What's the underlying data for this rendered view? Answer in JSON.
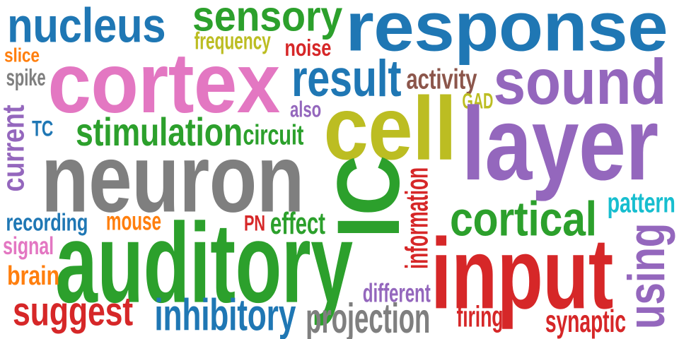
{
  "words": [
    {
      "text": "response",
      "color": "#1f77b4"
    },
    {
      "text": "nucleus",
      "color": "#1f77b4"
    },
    {
      "text": "sensory",
      "color": "#2ca02c"
    },
    {
      "text": "frequency",
      "color": "#bcbd22"
    },
    {
      "text": "noise",
      "color": "#d62728"
    },
    {
      "text": "slice",
      "color": "#ff7f0e"
    },
    {
      "text": "cortex",
      "color": "#e377c2"
    },
    {
      "text": "spike",
      "color": "#7f7f7f"
    },
    {
      "text": "result",
      "color": "#1f77b4"
    },
    {
      "text": "activity",
      "color": "#8c564b"
    },
    {
      "text": "sound",
      "color": "#9467bd"
    },
    {
      "text": "GAD",
      "color": "#bcbd22"
    },
    {
      "text": "also",
      "color": "#9467bd"
    },
    {
      "text": "cell",
      "color": "#bcbd22"
    },
    {
      "text": "current",
      "color": "#9467bd"
    },
    {
      "text": "TC",
      "color": "#1f77b4"
    },
    {
      "text": "stimulation",
      "color": "#2ca02c"
    },
    {
      "text": "circuit",
      "color": "#2ca02c"
    },
    {
      "text": "layer",
      "color": "#9467bd"
    },
    {
      "text": "neuron",
      "color": "#7f7f7f"
    },
    {
      "text": "IC",
      "color": "#2ca02c"
    },
    {
      "text": "information",
      "color": "#d62728"
    },
    {
      "text": "cortical",
      "color": "#2ca02c"
    },
    {
      "text": "pattern",
      "color": "#17becf"
    },
    {
      "text": "recording",
      "color": "#1f77b4"
    },
    {
      "text": "mouse",
      "color": "#ff7f0e"
    },
    {
      "text": "PN",
      "color": "#d62728"
    },
    {
      "text": "effect",
      "color": "#2ca02c"
    },
    {
      "text": "signal",
      "color": "#e377c2"
    },
    {
      "text": "auditory",
      "color": "#2ca02c"
    },
    {
      "text": "input",
      "color": "#d62728"
    },
    {
      "text": "using",
      "color": "#9467bd"
    },
    {
      "text": "brain",
      "color": "#ff7f0e"
    },
    {
      "text": "different",
      "color": "#9467bd"
    },
    {
      "text": "suggest",
      "color": "#d62728"
    },
    {
      "text": "inhibitory",
      "color": "#1f77b4"
    },
    {
      "text": "projection",
      "color": "#7f7f7f"
    },
    {
      "text": "firing",
      "color": "#d62728"
    },
    {
      "text": "synaptic",
      "color": "#d62728"
    }
  ]
}
